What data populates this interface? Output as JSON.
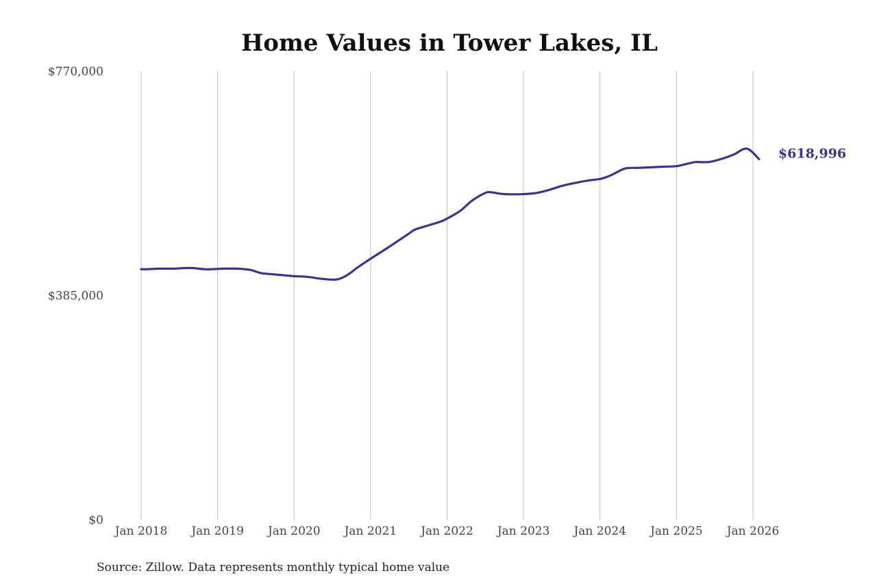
{
  "chart_data": {
    "type": "line",
    "title": "Home Values in Tower Lakes, IL",
    "source": "Source: Zillow. Data represents monthly typical home value",
    "y_ticks": [
      {
        "value": 770000,
        "label": "$770,000"
      },
      {
        "value": 385000,
        "label": "$385,000"
      },
      {
        "value": 0,
        "label": "$0"
      }
    ],
    "ylim": [
      0,
      770000
    ],
    "x_ticks": [
      {
        "value": 2018.0,
        "label": "Jan 2018"
      },
      {
        "value": 2019.0,
        "label": "Jan 2019"
      },
      {
        "value": 2020.0,
        "label": "Jan 2020"
      },
      {
        "value": 2021.0,
        "label": "Jan 2021"
      },
      {
        "value": 2022.0,
        "label": "Jan 2022"
      },
      {
        "value": 2023.0,
        "label": "Jan 2023"
      },
      {
        "value": 2024.0,
        "label": "Jan 2024"
      },
      {
        "value": 2025.0,
        "label": "Jan 2025"
      },
      {
        "value": 2026.0,
        "label": "Jan 2026"
      }
    ],
    "grid": "vertical",
    "line_color": "#3a3391",
    "end_label": "$618,996",
    "series": [
      {
        "x": [
          2018.0,
          2018.08,
          2018.25,
          2018.42,
          2018.58,
          2018.67,
          2018.83,
          2018.92,
          2019.08,
          2019.25,
          2019.42,
          2019.5,
          2019.58,
          2019.75,
          2019.92,
          2020.0,
          2020.17,
          2020.33,
          2020.5,
          2020.58,
          2020.67,
          2020.75,
          2020.83,
          2021.0,
          2021.25,
          2021.5,
          2021.58,
          2021.75,
          2021.92,
          2022.0,
          2022.17,
          2022.33,
          2022.5,
          2022.58,
          2022.75,
          2023.0,
          2023.17,
          2023.33,
          2023.5,
          2023.67,
          2023.83,
          2024.0,
          2024.08,
          2024.17,
          2024.33,
          2024.5,
          2024.67,
          2024.83,
          2025.0,
          2025.17,
          2025.25,
          2025.42,
          2025.58,
          2025.75,
          2025.92,
          2026.08
        ],
        "y": [
          430000,
          430000,
          431000,
          431000,
          432000,
          432000,
          430000,
          430000,
          431000,
          431000,
          429000,
          426000,
          423000,
          421000,
          419000,
          418000,
          417000,
          414000,
          412000,
          413000,
          418000,
          425000,
          433000,
          448000,
          469000,
          491000,
          498000,
          505000,
          512000,
          517000,
          530000,
          548000,
          561000,
          562000,
          559000,
          559000,
          561000,
          566000,
          573000,
          578000,
          582000,
          585000,
          588000,
          593000,
          603000,
          604000,
          605000,
          606000,
          607000,
          612000,
          614000,
          614000,
          619000,
          627000,
          637000,
          619000
        ]
      }
    ]
  }
}
